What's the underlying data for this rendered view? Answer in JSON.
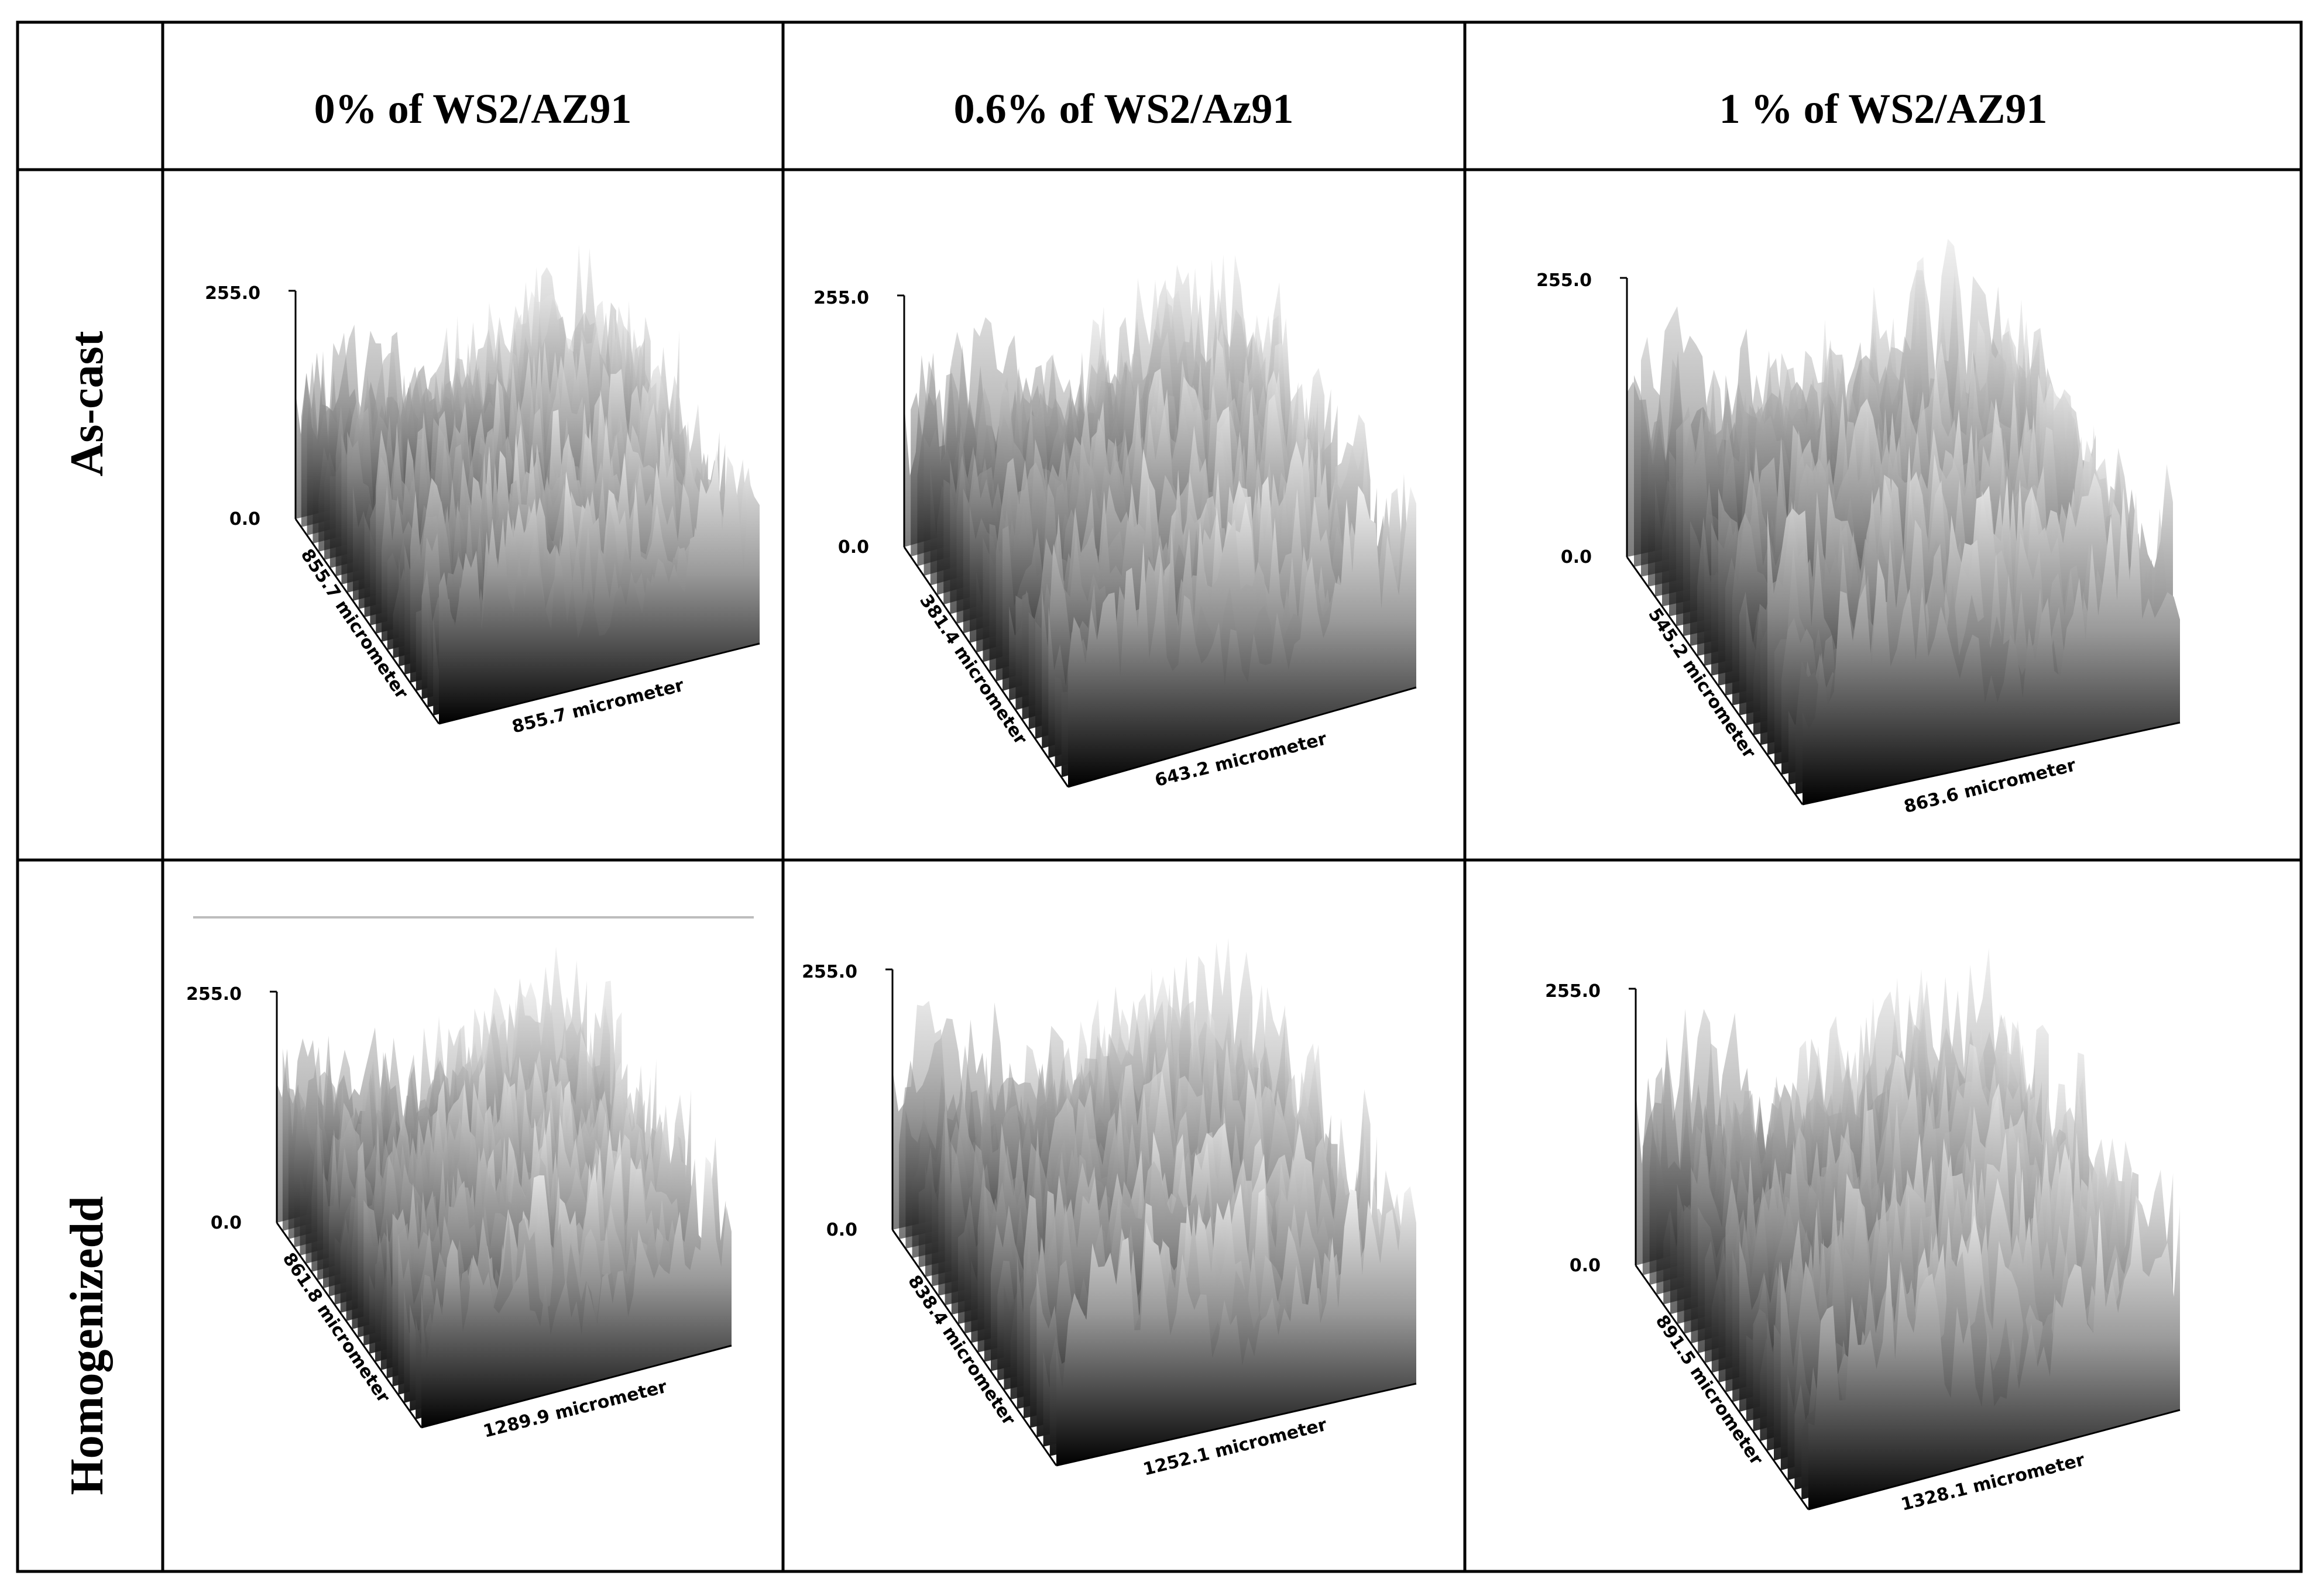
{
  "table": {
    "column_headers": [
      "0% of WS2/AZ91",
      "0.6% of WS2/Az91",
      "1 % of WS2/AZ91"
    ],
    "row_headers": [
      "As-cast",
      "Homogenizedd"
    ]
  },
  "plots": [
    {
      "row": 0,
      "col": 0,
      "z_max": "255.0",
      "z_min": "0.0",
      "depth_label": "855.7 micrometer",
      "width_label": "855.7 micrometer"
    },
    {
      "row": 0,
      "col": 1,
      "z_max": "255.0",
      "z_min": "0.0",
      "depth_label": "381.4 micrometer",
      "width_label": "643.2 micrometer"
    },
    {
      "row": 0,
      "col": 2,
      "z_max": "255.0",
      "z_min": "0.0",
      "depth_label": "545.2 micrometer",
      "width_label": "863.6 micrometer"
    },
    {
      "row": 1,
      "col": 0,
      "z_max": "255.0",
      "z_min": "0.0",
      "depth_label": "861.8 micrometer",
      "width_label": "1289.9 micrometer"
    },
    {
      "row": 1,
      "col": 1,
      "z_max": "255.0",
      "z_min": "0.0",
      "depth_label": "838.4 micrometer",
      "width_label": "1252.1 micrometer"
    },
    {
      "row": 1,
      "col": 2,
      "z_max": "255.0",
      "z_min": "0.0",
      "depth_label": "891.5 micrometer",
      "width_label": "1328.1 micrometer"
    }
  ],
  "colors": {
    "grid": "#000000",
    "surface_dark": "#000000",
    "surface_light": "#ffffff"
  }
}
